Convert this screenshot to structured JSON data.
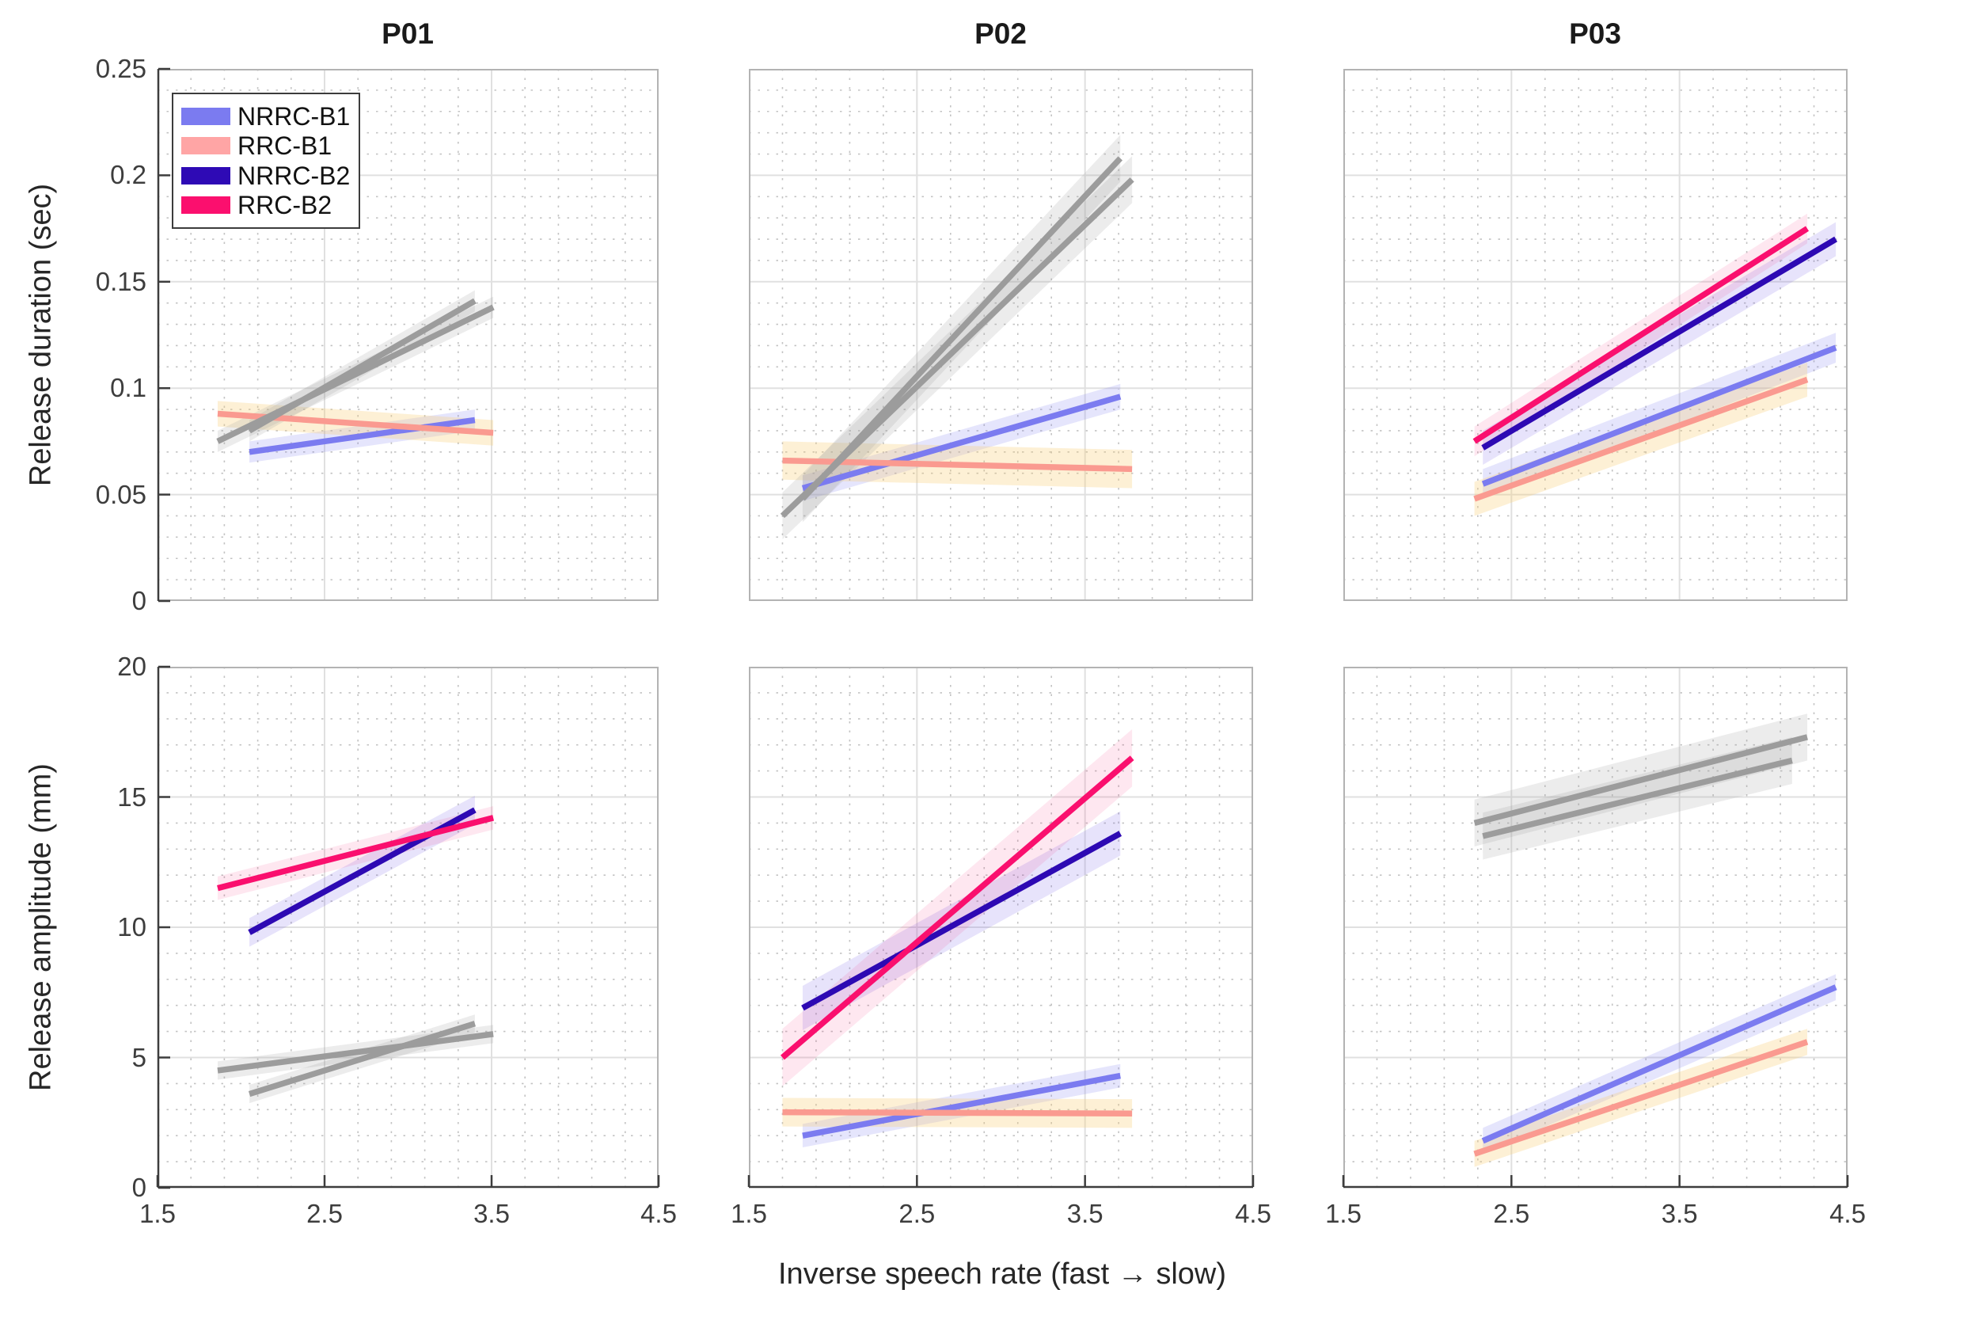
{
  "figure": {
    "titles": [
      "P01",
      "P02",
      "P03"
    ],
    "xlabel": "Inverse speech rate (fast → slow)",
    "ylabels": [
      "Release duration (sec)",
      "Release amplitude (mm)"
    ],
    "xticks": [
      "1.5",
      "2.5",
      "3.5",
      "4.5"
    ],
    "yticks_top": [
      "0",
      "0.05",
      "0.1",
      "0.15",
      "0.2",
      "0.25"
    ],
    "yticks_bottom": [
      "0",
      "5",
      "10",
      "15",
      "20"
    ]
  },
  "legend": {
    "entries": [
      {
        "label": "NRRC-B1",
        "color": "#7b7bf0"
      },
      {
        "label": "RRC-B1",
        "color": "#ffa5a5"
      },
      {
        "label": "NRRC-B2",
        "color": "#2e0ab5"
      },
      {
        "label": "RRC-B2",
        "color": "#fb0f6e"
      }
    ]
  },
  "colors": {
    "NRRC-B1": {
      "line": "#7b7bf0",
      "band": "rgba(123,123,240,0.20)"
    },
    "RRC-B1": {
      "line": "#fa9a90",
      "band": "rgba(250,205,115,0.30)"
    },
    "NRRC-B2": {
      "line": "#2d09b3",
      "band": "rgba(104,82,230,0.16)"
    },
    "RRC-B2": {
      "line": "#fa0f6e",
      "band": "rgba(250,15,110,0.10)"
    },
    "muted": {
      "line": "#9c9c9c",
      "band": "rgba(158,158,158,0.20)"
    },
    "grid_major": "#e0e0e0",
    "grid_minor": "#c3c3c3",
    "frame": "#b3b3b3",
    "axis": "#3d3d3d",
    "text": "#262626"
  },
  "chart_data": {
    "type": "line",
    "x_axis": {
      "label": "Inverse speech rate (fast → slow)",
      "lim": [
        1.5,
        4.5
      ],
      "major_ticks": [
        1.5,
        2.5,
        3.5,
        4.5
      ],
      "minor_step": 0.2
    },
    "rows": [
      {
        "ylabel": "Release duration (sec)",
        "ylim": [
          0,
          0.25
        ],
        "major_step": 0.05,
        "minor_step": 0.01
      },
      {
        "ylabel": "Release amplitude (mm)",
        "ylim": [
          0,
          20
        ],
        "major_step": 5,
        "minor_step": 1
      }
    ],
    "legend_note": "gray (muted) series are shown de-emphasized in the original figure",
    "panels": [
      {
        "title": "P01",
        "row": 0,
        "col": 0,
        "series": [
          {
            "name": "NRRC-B1",
            "muted": false,
            "x": [
              2.05,
              3.4
            ],
            "y": [
              0.07,
              0.085
            ],
            "band": 0.005
          },
          {
            "name": "RRC-B1",
            "muted": false,
            "x": [
              1.86,
              3.51
            ],
            "y": [
              0.088,
              0.079
            ],
            "band": 0.006
          },
          {
            "name": "NRRC-B2",
            "muted": true,
            "x": [
              2.05,
              3.4
            ],
            "y": [
              0.08,
              0.141
            ],
            "band": 0.005
          },
          {
            "name": "RRC-B2",
            "muted": true,
            "x": [
              1.86,
              3.51
            ],
            "y": [
              0.075,
              0.138
            ],
            "band": 0.005
          }
        ]
      },
      {
        "title": "P02",
        "row": 0,
        "col": 1,
        "series": [
          {
            "name": "NRRC-B1",
            "muted": false,
            "x": [
              1.82,
              3.71
            ],
            "y": [
              0.053,
              0.096
            ],
            "band": 0.006
          },
          {
            "name": "RRC-B1",
            "muted": false,
            "x": [
              1.7,
              3.78
            ],
            "y": [
              0.066,
              0.062
            ],
            "band": 0.009
          },
          {
            "name": "NRRC-B2",
            "muted": true,
            "x": [
              1.82,
              3.71
            ],
            "y": [
              0.048,
              0.208
            ],
            "band": 0.011
          },
          {
            "name": "RRC-B2",
            "muted": true,
            "x": [
              1.7,
              3.78
            ],
            "y": [
              0.04,
              0.198
            ],
            "band": 0.011
          }
        ]
      },
      {
        "title": "P03",
        "row": 0,
        "col": 2,
        "series": [
          {
            "name": "NRRC-B1",
            "muted": false,
            "x": [
              2.33,
              4.43
            ],
            "y": [
              0.055,
              0.119
            ],
            "band": 0.007
          },
          {
            "name": "RRC-B1",
            "muted": false,
            "x": [
              2.28,
              4.26
            ],
            "y": [
              0.048,
              0.104
            ],
            "band": 0.008
          },
          {
            "name": "NRRC-B2",
            "muted": false,
            "x": [
              2.33,
              4.43
            ],
            "y": [
              0.072,
              0.17
            ],
            "band": 0.008
          },
          {
            "name": "RRC-B2",
            "muted": false,
            "x": [
              2.28,
              4.26
            ],
            "y": [
              0.075,
              0.175
            ],
            "band": 0.007
          }
        ]
      },
      {
        "title": "P01",
        "row": 1,
        "col": 0,
        "series": [
          {
            "name": "NRRC-B1",
            "muted": true,
            "x": [
              2.05,
              3.4
            ],
            "y": [
              3.6,
              6.3
            ],
            "band": 0.35
          },
          {
            "name": "RRC-B1",
            "muted": true,
            "x": [
              1.86,
              3.51
            ],
            "y": [
              4.5,
              5.9
            ],
            "band": 0.35
          },
          {
            "name": "NRRC-B2",
            "muted": false,
            "x": [
              2.05,
              3.4
            ],
            "y": [
              9.8,
              14.5
            ],
            "band": 0.55
          },
          {
            "name": "RRC-B2",
            "muted": false,
            "x": [
              1.86,
              3.51
            ],
            "y": [
              11.5,
              14.2
            ],
            "band": 0.45
          }
        ]
      },
      {
        "title": "P02",
        "row": 1,
        "col": 1,
        "series": [
          {
            "name": "NRRC-B1",
            "muted": false,
            "x": [
              1.82,
              3.71
            ],
            "y": [
              2.0,
              4.3
            ],
            "band": 0.45
          },
          {
            "name": "RRC-B1",
            "muted": false,
            "x": [
              1.7,
              3.78
            ],
            "y": [
              2.9,
              2.85
            ],
            "band": 0.55
          },
          {
            "name": "NRRC-B2",
            "muted": false,
            "x": [
              1.82,
              3.71
            ],
            "y": [
              6.9,
              13.6
            ],
            "band": 0.85
          },
          {
            "name": "RRC-B2",
            "muted": false,
            "x": [
              1.7,
              3.78
            ],
            "y": [
              5.0,
              16.5
            ],
            "band": 1.1
          }
        ]
      },
      {
        "title": "P03",
        "row": 1,
        "col": 2,
        "series": [
          {
            "name": "NRRC-B1",
            "muted": false,
            "x": [
              2.33,
              4.43
            ],
            "y": [
              1.8,
              7.7
            ],
            "band": 0.5
          },
          {
            "name": "RRC-B1",
            "muted": false,
            "x": [
              2.28,
              4.26
            ],
            "y": [
              1.3,
              5.6
            ],
            "band": 0.5
          },
          {
            "name": "NRRC-B2",
            "muted": true,
            "x": [
              2.33,
              4.17
            ],
            "y": [
              13.5,
              16.4
            ],
            "band": 0.9
          },
          {
            "name": "RRC-B2",
            "muted": true,
            "x": [
              2.28,
              4.26
            ],
            "y": [
              14.0,
              17.3
            ],
            "band": 0.9
          }
        ]
      }
    ]
  }
}
